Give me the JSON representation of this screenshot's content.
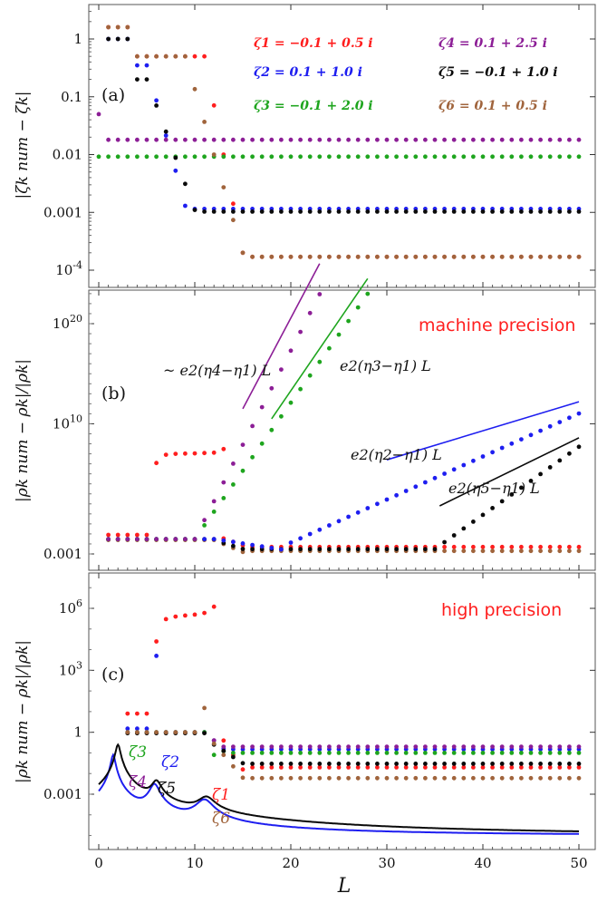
{
  "colors": {
    "zeta1": "#ff1e1e",
    "zeta2": "#1e1ef0",
    "zeta3": "#1ea51e",
    "zeta4": "#8c1e96",
    "zeta5": "#0a0a0a",
    "zeta6": "#a0643c"
  },
  "xaxis": {
    "label": "L",
    "ticks": [
      "0",
      "10",
      "20",
      "30",
      "40",
      "50"
    ]
  },
  "chart_data": [
    {
      "panel": "(a)",
      "type": "scatter",
      "yscale": "log",
      "ylabel": "|ζk num − ζk|",
      "yticks": [
        "1",
        "0.1",
        "0.01",
        "0.001",
        "10-4"
      ],
      "xlim": [
        -0.5,
        51
      ],
      "ylim": [
        5e-05,
        4
      ],
      "legend": [
        {
          "key": "zeta1",
          "label": "ζ1 = −0.1 + 0.5 i"
        },
        {
          "key": "zeta2",
          "label": "ζ2 = 0.1 + 1.0 i"
        },
        {
          "key": "zeta3",
          "label": "ζ3 = −0.1 + 2.0 i"
        },
        {
          "key": "zeta4",
          "label": "ζ4 = 0.1 + 2.5 i"
        },
        {
          "key": "zeta5",
          "label": "ζ5 = −0.1 + 1.0 i"
        },
        {
          "key": "zeta6",
          "label": "ζ6 = 0.1 + 0.5 i"
        }
      ],
      "series": [
        {
          "key": "zeta1",
          "segments": [
            {
              "from": 1,
              "to": 3,
              "value": 1.6
            },
            {
              "from": 4,
              "to": 11,
              "value": 0.5
            },
            {
              "from": 12,
              "to": 15,
              "value": "decay",
              "end": 0.0002
            },
            {
              "from": 16,
              "to": 50,
              "value": 0.00017
            }
          ]
        },
        {
          "key": "zeta2",
          "segments": [
            {
              "from": 1,
              "to": 3,
              "value": 1.0
            },
            {
              "from": 4,
              "to": 5,
              "value": 0.35
            },
            {
              "from": 6,
              "to": 9,
              "value": "decay",
              "end": 0.0013
            },
            {
              "from": 10,
              "to": 50,
              "value": 0.00115
            }
          ]
        },
        {
          "key": "zeta3",
          "segments": [
            {
              "from": 0,
              "to": 50,
              "value": 0.0092
            }
          ]
        },
        {
          "key": "zeta4",
          "segments": [
            {
              "from": 0,
              "to": 0,
              "value": 0.05
            },
            {
              "from": 1,
              "to": 50,
              "value": 0.018
            }
          ]
        },
        {
          "key": "zeta5",
          "segments": [
            {
              "from": 1,
              "to": 3,
              "value": 1.0
            },
            {
              "from": 4,
              "to": 5,
              "value": 0.2
            },
            {
              "from": 6,
              "to": 10,
              "value": "decay",
              "end": 0.0011
            },
            {
              "from": 11,
              "to": 50,
              "value": 0.00103
            }
          ]
        },
        {
          "key": "zeta6",
          "segments": [
            {
              "from": 1,
              "to": 3,
              "value": 1.6
            },
            {
              "from": 4,
              "to": 9,
              "value": 0.5
            },
            {
              "from": 10,
              "to": 15,
              "value": "decay",
              "end": 0.0002
            },
            {
              "from": 16,
              "to": 50,
              "value": 0.00017
            }
          ]
        }
      ]
    },
    {
      "panel": "(b)",
      "type": "scatter",
      "yscale": "log",
      "title": "machine precision",
      "ylabel": "|ρk num − ρk|/|ρk|",
      "yticks": [
        "1020",
        "1010",
        "0.001"
      ],
      "xlim": [
        -0.5,
        51
      ],
      "ylim": [
        0.0001,
        1e+24
      ],
      "annotations": [
        "~ e2(η4−η1) L",
        "e2(η3−η1) L",
        "e2(η2−η1) L",
        "e2(η5−η1) L"
      ],
      "series": [
        {
          "key": "zeta1",
          "description": "≈0.08 for L≤5, jumps to ~1e6–1e7 for 6–12, then ≈0.005 flat"
        },
        {
          "key": "zeta2",
          "description": "≈0.03 flat, grows exponentially from L≈19 to ~1e11 at L=50"
        },
        {
          "key": "zeta3",
          "description": "≈0.03 flat, grows exponentially from L≈11 to ~1e23 at L=28"
        },
        {
          "key": "zeta4",
          "description": "≈0.03 flat, grows exponentially from L≈11 to ~1e23 at L=23"
        },
        {
          "key": "zeta5",
          "description": "≈0.03 flat, drops to ≈0.003, grows from L≈35 to ~1e8 at L=50"
        },
        {
          "key": "zeta6",
          "description": "≈0.03 flat, settles at ≈0.002 for L≥16"
        }
      ]
    },
    {
      "panel": "(c)",
      "type": "scatter",
      "yscale": "log",
      "title": "high precision",
      "ylabel": "|ρk num − ρk|/|ρk|",
      "yticks": [
        "106",
        "103",
        "1",
        "0.001"
      ],
      "xlim": [
        -0.5,
        51
      ],
      "ylim": [
        1e-06,
        100000000.0
      ],
      "zeta_labels": [
        "ζ3",
        "ζ2",
        "ζ4",
        "ζ5",
        "ζ1",
        "ζ6"
      ],
      "series": [
        {
          "key": "zeta1",
          "description": "≈8 for 3–5, ~1e6 for 6–12, ≈0.02 for L≥16"
        },
        {
          "key": "zeta2",
          "description": "≈1.5 early, ≈0.15 for L≥14"
        },
        {
          "key": "zeta3",
          "description": "≈1 early, ≈0.1 for L≥14"
        },
        {
          "key": "zeta4",
          "description": "≈1 early, ≈0.2 for L≥14"
        },
        {
          "key": "zeta5",
          "description": "≈1 early, ≈0.03 for L≥16"
        },
        {
          "key": "zeta6",
          "description": "≈1 early, ≈0.006 for L≥16"
        },
        {
          "key": "curves",
          "description": "blue and black resonance curves with peaks near L=1.5, 2, 6, 11, baseline ≈1e-5"
        }
      ]
    }
  ]
}
